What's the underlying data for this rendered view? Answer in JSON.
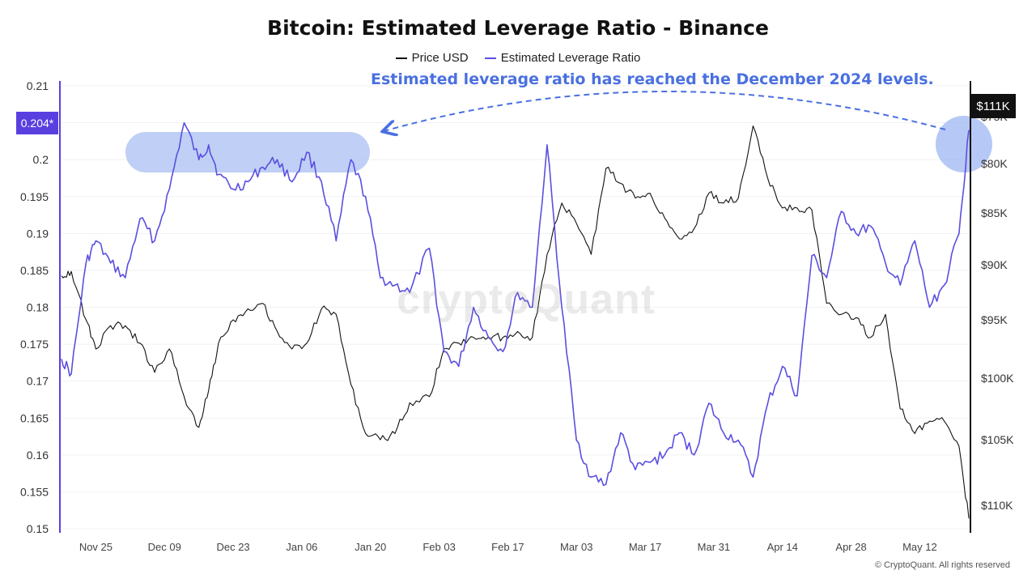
{
  "chart_data": {
    "type": "line",
    "title": "Bitcoin: Estimated Leverage Ratio - Binance",
    "legend": [
      {
        "name": "Price USD",
        "color": "#111111"
      },
      {
        "name": "Estimated Leverage Ratio",
        "color": "#5a4fe0"
      }
    ],
    "annotation": "Estimated leverage ratio has reached the  December 2024 levels.",
    "left_axis": {
      "min": 0.15,
      "max": 0.21,
      "ticks": [
        "0.21",
        "0.205",
        "0.2",
        "0.195",
        "0.19",
        "0.185",
        "0.18",
        "0.175",
        "0.17",
        "0.165",
        "0.16",
        "0.155",
        "0.15"
      ],
      "tick_values": [
        0.21,
        0.205,
        0.2,
        0.195,
        0.19,
        0.185,
        0.18,
        0.175,
        0.17,
        0.165,
        0.16,
        0.155,
        0.15
      ],
      "current_label": "0.204*",
      "current_value": 0.204
    },
    "right_axis": {
      "ticks": [
        "$110K",
        "$105K",
        "$100K",
        "$95K",
        "$90K",
        "$85K",
        "$80K",
        "$75K"
      ],
      "tick_values": [
        110000,
        105000,
        100000,
        95000,
        90000,
        85000,
        80000,
        75000
      ],
      "current_label": "$111K",
      "current_value": 111000
    },
    "x_axis": {
      "ticks": [
        "Nov 25",
        "Dec 09",
        "Dec 23",
        "Jan 06",
        "Jan 20",
        "Feb 03",
        "Feb 17",
        "Mar 03",
        "Mar 17",
        "Mar 31",
        "Apr 14",
        "Apr 28",
        "May 12"
      ],
      "start": "2024-11-18",
      "end": "2025-05-22"
    },
    "x": [
      "2024-11-18",
      "2024-11-20",
      "2024-11-23",
      "2024-11-25",
      "2024-11-28",
      "2024-12-01",
      "2024-12-04",
      "2024-12-07",
      "2024-12-10",
      "2024-12-13",
      "2024-12-16",
      "2024-12-18",
      "2024-12-20",
      "2024-12-23",
      "2024-12-26",
      "2024-12-29",
      "2025-01-01",
      "2025-01-04",
      "2025-01-07",
      "2025-01-10",
      "2025-01-13",
      "2025-01-16",
      "2025-01-19",
      "2025-01-22",
      "2025-01-25",
      "2025-01-28",
      "2025-02-01",
      "2025-02-04",
      "2025-02-07",
      "2025-02-10",
      "2025-02-13",
      "2025-02-16",
      "2025-02-19",
      "2025-02-22",
      "2025-02-25",
      "2025-02-28",
      "2025-03-03",
      "2025-03-06",
      "2025-03-09",
      "2025-03-12",
      "2025-03-15",
      "2025-03-18",
      "2025-03-21",
      "2025-03-24",
      "2025-03-27",
      "2025-03-30",
      "2025-04-02",
      "2025-04-05",
      "2025-04-08",
      "2025-04-11",
      "2025-04-14",
      "2025-04-17",
      "2025-04-20",
      "2025-04-23",
      "2025-04-26",
      "2025-04-29",
      "2025-05-02",
      "2025-05-05",
      "2025-05-08",
      "2025-05-11",
      "2025-05-14",
      "2025-05-17",
      "2025-05-20",
      "2025-05-22"
    ],
    "series": [
      {
        "name": "Estimated Leverage Ratio",
        "axis": "left",
        "color": "#5a4fe0",
        "values": [
          0.173,
          0.171,
          0.186,
          0.189,
          0.186,
          0.184,
          0.192,
          0.189,
          0.196,
          0.205,
          0.2,
          0.202,
          0.198,
          0.196,
          0.197,
          0.199,
          0.2,
          0.197,
          0.201,
          0.197,
          0.189,
          0.2,
          0.195,
          0.184,
          0.183,
          0.182,
          0.188,
          0.174,
          0.172,
          0.18,
          0.176,
          0.174,
          0.182,
          0.18,
          0.202,
          0.18,
          0.162,
          0.157,
          0.156,
          0.163,
          0.158,
          0.159,
          0.16,
          0.163,
          0.16,
          0.167,
          0.163,
          0.162,
          0.157,
          0.167,
          0.172,
          0.168,
          0.187,
          0.184,
          0.193,
          0.19,
          0.191,
          0.186,
          0.183,
          0.189,
          0.18,
          0.183,
          0.19,
          0.204
        ]
      },
      {
        "name": "Price USD",
        "axis": "right",
        "color": "#111111",
        "values": [
          91000,
          90600,
          95000,
          97500,
          95500,
          95500,
          97000,
          99500,
          97500,
          101500,
          104000,
          101000,
          97000,
          95000,
          94000,
          93500,
          96000,
          97500,
          97000,
          94000,
          94500,
          100500,
          104500,
          105000,
          104500,
          102000,
          101500,
          97500,
          97000,
          96500,
          96500,
          96500,
          96000,
          96500,
          89000,
          84000,
          86000,
          89000,
          80500,
          82000,
          83500,
          83000,
          85500,
          87500,
          86500,
          83000,
          84000,
          83500,
          76000,
          81500,
          84500,
          84500,
          84700,
          93500,
          94500,
          94800,
          96500,
          94500,
          102500,
          104500,
          103500,
          103500,
          105500,
          111000
        ]
      }
    ]
  },
  "watermark": "cryptoQuant",
  "copyright": "© CryptoQuant. All rights reserved",
  "colors": {
    "accent": "#4a70e0",
    "highlight_fill": "#a9bff2",
    "leverage": "#5a4fe0",
    "price": "#111111"
  }
}
